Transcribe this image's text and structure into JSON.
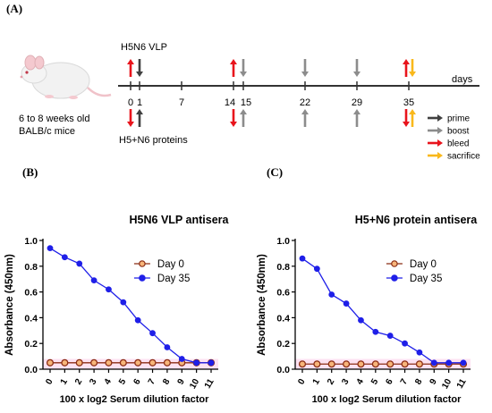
{
  "panels": {
    "a": "(A)",
    "b": "(B)",
    "c": "(C)"
  },
  "schematic": {
    "mouse_label_line1": "6 to 8 weeks old",
    "mouse_label_line2": "BALB/c mice",
    "top_group": "H5N6 VLP",
    "bottom_group": "H5+N6 proteins",
    "axis_unit": "days",
    "day_ticks": [
      "0",
      "1",
      "7",
      "14",
      "15",
      "22",
      "29",
      "35"
    ],
    "events": [
      {
        "day": 0,
        "type": "bleed"
      },
      {
        "day": 1,
        "type": "prime"
      },
      {
        "day": 14,
        "type": "bleed"
      },
      {
        "day": 15,
        "type": "boost"
      },
      {
        "day": 22,
        "type": "boost"
      },
      {
        "day": 29,
        "type": "boost"
      },
      {
        "day": 35,
        "type": "bleed"
      },
      {
        "day": 35,
        "type": "sacrifice"
      }
    ],
    "legend": [
      {
        "key": "prime",
        "label": "prime",
        "color": "#404040"
      },
      {
        "key": "boost",
        "label": "boost",
        "color": "#8c8c8c"
      },
      {
        "key": "bleed",
        "label": "bleed",
        "color": "#e8141c"
      },
      {
        "key": "sacrifice",
        "label": "sacrifice",
        "color": "#f9b81b"
      }
    ]
  },
  "chart_data": [
    {
      "type": "line",
      "title": "H5N6 VLP antisera",
      "xlabel": "100 x log2 Serum dilution factor",
      "ylabel": "Absorbance (450nm)",
      "ylim": [
        0.0,
        1.0
      ],
      "yticks": [
        "0.0",
        "0.2",
        "0.4",
        "0.6",
        "0.8",
        "1.0"
      ],
      "categories": [
        "0",
        "1",
        "2",
        "3",
        "4",
        "5",
        "6",
        "7",
        "8",
        "9",
        "10",
        "11"
      ],
      "legend_position": "top-right",
      "series": [
        {
          "name": "Day 0",
          "color": "#8b2c14",
          "fill": "#f7b57a",
          "values": [
            0.05,
            0.05,
            0.05,
            0.05,
            0.05,
            0.05,
            0.05,
            0.05,
            0.05,
            0.05,
            0.05,
            0.05
          ]
        },
        {
          "name": "Day 35",
          "color": "#1f1fe8",
          "fill": "#1f1fe8",
          "values": [
            0.94,
            0.87,
            0.82,
            0.69,
            0.62,
            0.52,
            0.38,
            0.28,
            0.17,
            0.08,
            0.05,
            0.05
          ]
        }
      ]
    },
    {
      "type": "line",
      "title": "H5+N6 protein antisera",
      "xlabel": "100 x log2 Serum dilution factor",
      "ylabel": "Absorbance (450nm)",
      "ylim": [
        0.0,
        1.0
      ],
      "yticks": [
        "0.0",
        "0.2",
        "0.4",
        "0.6",
        "0.8",
        "1.0"
      ],
      "categories": [
        "0",
        "1",
        "2",
        "3",
        "4",
        "5",
        "6",
        "7",
        "8",
        "9",
        "10",
        "11"
      ],
      "legend_position": "top-right",
      "series": [
        {
          "name": "Day 0",
          "color": "#8b2c14",
          "fill": "#f7b57a",
          "values": [
            0.04,
            0.04,
            0.04,
            0.04,
            0.04,
            0.04,
            0.04,
            0.04,
            0.04,
            0.04,
            0.04,
            0.04
          ]
        },
        {
          "name": "Day 35",
          "color": "#1f1fe8",
          "fill": "#1f1fe8",
          "values": [
            0.86,
            0.78,
            0.58,
            0.51,
            0.38,
            0.29,
            0.26,
            0.2,
            0.13,
            0.05,
            0.05,
            0.05
          ]
        }
      ]
    }
  ]
}
